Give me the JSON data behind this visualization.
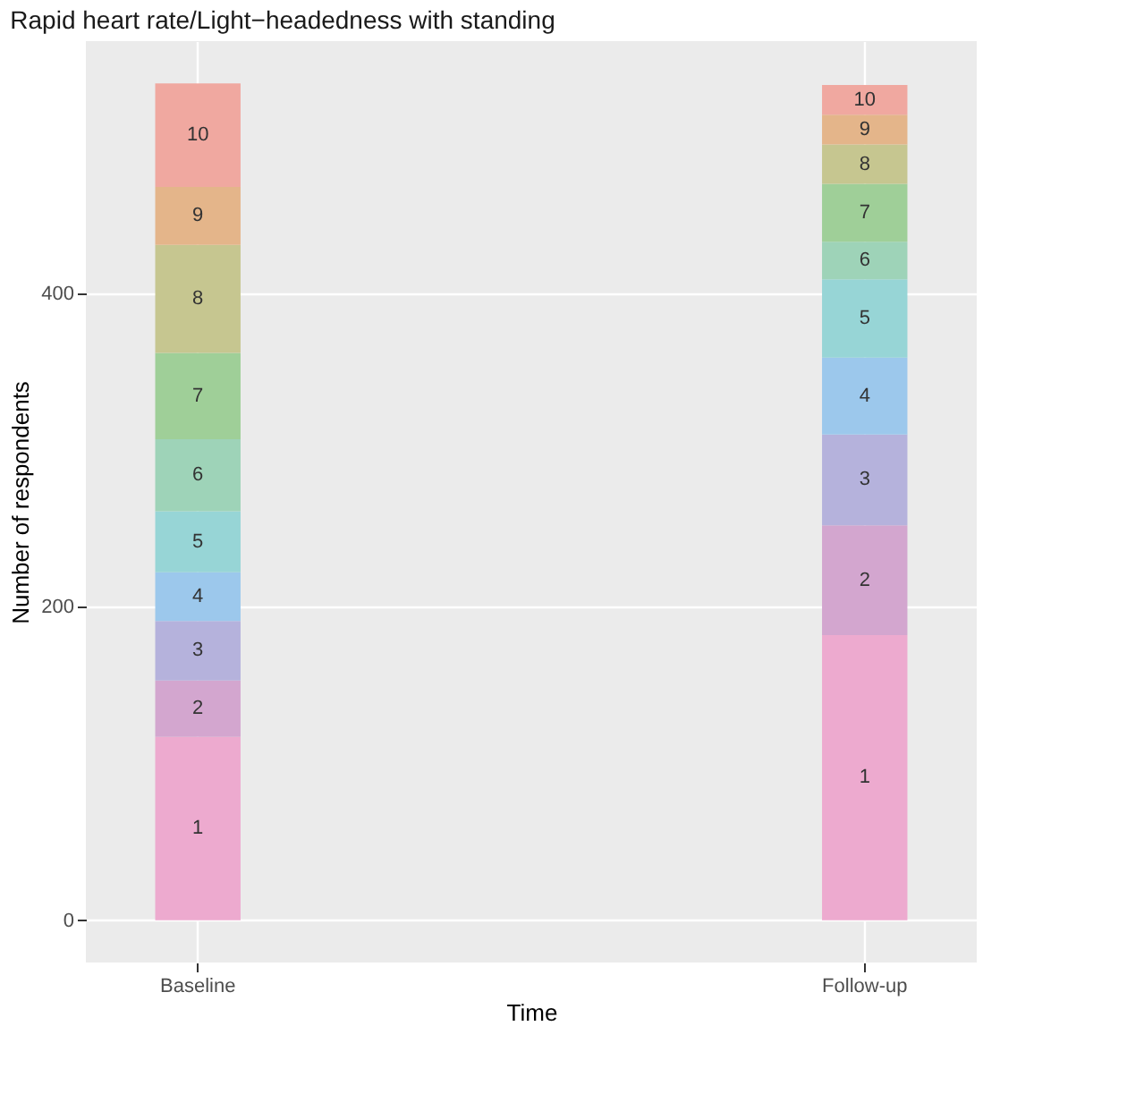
{
  "chart_data": {
    "type": "bar",
    "stacked": true,
    "title": "Rapid heart rate/Light−headedness with standing",
    "xlabel": "Time",
    "ylabel": "Number of respondents",
    "categories": [
      "Baseline",
      "Follow-up"
    ],
    "series": [
      {
        "name": "1",
        "color": "#edaacf",
        "values": [
          117,
          182
        ]
      },
      {
        "name": "2",
        "color": "#d3a6cf",
        "values": [
          36,
          70
        ]
      },
      {
        "name": "3",
        "color": "#b5b2dc",
        "values": [
          38,
          58
        ]
      },
      {
        "name": "4",
        "color": "#9cc8ec",
        "values": [
          31,
          49
        ]
      },
      {
        "name": "5",
        "color": "#97d5d6",
        "values": [
          39,
          50
        ]
      },
      {
        "name": "6",
        "color": "#9ed3b8",
        "values": [
          46,
          24
        ]
      },
      {
        "name": "7",
        "color": "#9fcf98",
        "values": [
          55,
          37
        ]
      },
      {
        "name": "8",
        "color": "#c6c690",
        "values": [
          69,
          25
        ]
      },
      {
        "name": "9",
        "color": "#e4b58a",
        "values": [
          37,
          19
        ]
      },
      {
        "name": "10",
        "color": "#f0a8a0",
        "values": [
          66,
          19
        ]
      }
    ],
    "ylim": [
      -27,
      561
    ],
    "yticks": [
      0,
      200,
      400
    ],
    "grid": true,
    "legend": false
  }
}
